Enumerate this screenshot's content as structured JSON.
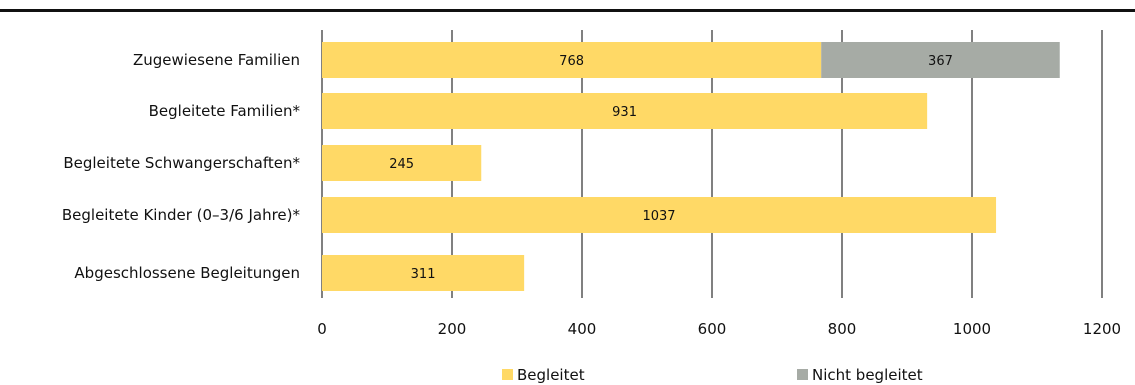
{
  "chart_data": {
    "type": "bar",
    "orientation": "horizontal",
    "stacked": true,
    "categories": [
      "Zugewiesene Familien",
      "Begleitete Familien*",
      "Begleitete Schwangerschaften*",
      "Begleitete Kinder (0–3/6 Jahre)*",
      "Abgeschlossene Begleitungen"
    ],
    "series": [
      {
        "name": "Begleitet",
        "color": "#FFD966",
        "values": [
          768,
          931,
          245,
          1037,
          311
        ]
      },
      {
        "name": "Nicht begleitet",
        "color": "#A6ABA5",
        "values": [
          367,
          null,
          null,
          null,
          null
        ]
      }
    ],
    "xlim": [
      0,
      1200
    ],
    "xticks": [
      0,
      200,
      400,
      600,
      800,
      1000,
      1200
    ],
    "title": "",
    "xlabel": "",
    "ylabel": "",
    "grid": "vertical",
    "legend_position": "bottom"
  }
}
